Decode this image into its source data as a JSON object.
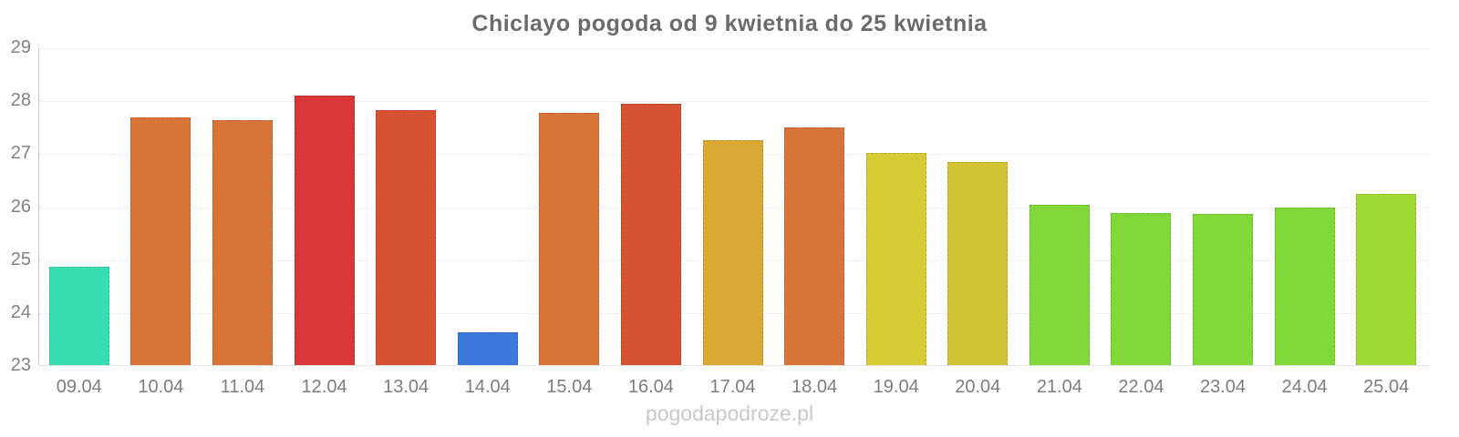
{
  "watermark": "pogodapodroze.pl",
  "chart_data": {
    "type": "bar",
    "title": "Chiclayo pogoda od 9 kwietnia do 25 kwietnia",
    "xlabel": "",
    "ylabel": "",
    "ylim": [
      23,
      29
    ],
    "yticks": [
      23,
      24,
      25,
      26,
      27,
      28,
      29
    ],
    "grid": "horizontal-dotted",
    "legend": "none",
    "categories": [
      "09.04",
      "10.04",
      "11.04",
      "12.04",
      "13.04",
      "14.04",
      "15.04",
      "16.04",
      "17.04",
      "18.04",
      "19.04",
      "20.04",
      "21.04",
      "22.04",
      "23.04",
      "24.04",
      "25.04"
    ],
    "values": [
      24.88,
      27.7,
      27.64,
      28.1,
      27.83,
      23.63,
      27.78,
      27.95,
      27.27,
      27.5,
      27.02,
      26.85,
      26.05,
      25.88,
      25.87,
      26.0,
      26.25
    ],
    "bar_colors": [
      "#3adcb2",
      "#d97439",
      "#d97439",
      "#d93737",
      "#d65231",
      "#3a78d9",
      "#d97439",
      "#d65231",
      "#d9a934",
      "#d97439",
      "#d7cb35",
      "#d3c437",
      "#80d938",
      "#80d938",
      "#80d938",
      "#80d938",
      "#a1d936"
    ],
    "colors": {
      "title_text": "#6b6b6b",
      "axis_text": "#828282",
      "axis_line": "#c6c6c6",
      "gridline": "#e4e4e4",
      "watermark_text": "#c9c9c9",
      "background": "#ffffff"
    }
  }
}
